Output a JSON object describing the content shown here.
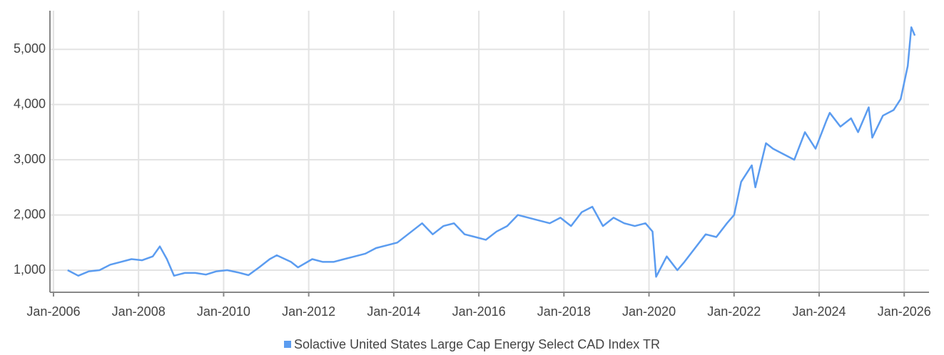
{
  "chart_data": {
    "type": "line",
    "x": [
      "2006-05",
      "2006-08",
      "2006-11",
      "2007-02",
      "2007-05",
      "2007-08",
      "2007-11",
      "2008-02",
      "2008-05",
      "2008-07",
      "2008-09",
      "2008-11",
      "2009-02",
      "2009-05",
      "2009-08",
      "2009-11",
      "2010-02",
      "2010-05",
      "2010-08",
      "2010-11",
      "2011-02",
      "2011-04",
      "2011-08",
      "2011-10",
      "2012-02",
      "2012-05",
      "2012-08",
      "2012-11",
      "2013-02",
      "2013-05",
      "2013-08",
      "2013-11",
      "2014-02",
      "2014-06",
      "2014-09",
      "2014-12",
      "2015-03",
      "2015-06",
      "2015-09",
      "2015-12",
      "2016-03",
      "2016-06",
      "2016-09",
      "2016-12",
      "2017-03",
      "2017-06",
      "2017-09",
      "2017-12",
      "2018-03",
      "2018-06",
      "2018-09",
      "2018-12",
      "2019-03",
      "2019-06",
      "2019-09",
      "2019-12",
      "2020-02",
      "2020-03",
      "2020-06",
      "2020-09",
      "2020-11",
      "2021-02",
      "2021-05",
      "2021-08",
      "2021-11",
      "2022-01",
      "2022-03",
      "2022-06",
      "2022-07",
      "2022-10",
      "2022-12",
      "2023-03",
      "2023-06",
      "2023-09",
      "2023-12",
      "2024-03",
      "2024-04",
      "2024-07",
      "2024-10",
      "2024-12",
      "2025-03",
      "2025-04",
      "2025-07",
      "2025-10",
      "2025-12",
      "2026-02",
      "2026-03",
      "2026-04"
    ],
    "series": [
      {
        "name": "Solactive United States Large Cap Energy Select CAD Index TR",
        "color": "#5b9cf0",
        "values": [
          1000,
          900,
          980,
          1000,
          1100,
          1150,
          1200,
          1180,
          1250,
          1430,
          1200,
          900,
          950,
          950,
          920,
          980,
          1000,
          960,
          910,
          1050,
          1200,
          1270,
          1150,
          1050,
          1200,
          1150,
          1150,
          1200,
          1250,
          1300,
          1400,
          1450,
          1500,
          1700,
          1850,
          1650,
          1800,
          1850,
          1650,
          1600,
          1550,
          1700,
          1800,
          2000,
          1950,
          1900,
          1850,
          1950,
          1800,
          2050,
          2150,
          1800,
          1950,
          1850,
          1800,
          1850,
          1700,
          880,
          1250,
          1000,
          1150,
          1400,
          1650,
          1600,
          1850,
          2000,
          2600,
          2900,
          2500,
          3300,
          3200,
          3100,
          3000,
          3500,
          3200,
          3700,
          3850,
          3600,
          3750,
          3500,
          3950,
          3400,
          3800,
          3900,
          4100,
          4700,
          5400,
          5250
        ]
      }
    ],
    "xlim": [
      "2005-12",
      "2026-08"
    ],
    "xticks": [
      {
        "value": "2006-01",
        "label": "Jan-2006"
      },
      {
        "value": "2008-01",
        "label": "Jan-2008"
      },
      {
        "value": "2010-01",
        "label": "Jan-2010"
      },
      {
        "value": "2012-01",
        "label": "Jan-2012"
      },
      {
        "value": "2014-01",
        "label": "Jan-2014"
      },
      {
        "value": "2016-01",
        "label": "Jan-2016"
      },
      {
        "value": "2018-01",
        "label": "Jan-2018"
      },
      {
        "value": "2020-01",
        "label": "Jan-2020"
      },
      {
        "value": "2022-01",
        "label": "Jan-2022"
      },
      {
        "value": "2024-01",
        "label": "Jan-2024"
      },
      {
        "value": "2026-01",
        "label": "Jan-2026"
      }
    ],
    "ylim": [
      600,
      5700
    ],
    "yticks": [
      {
        "value": 1000,
        "label": "1,000"
      },
      {
        "value": 2000,
        "label": "2,000"
      },
      {
        "value": 3000,
        "label": "3,000"
      },
      {
        "value": 4000,
        "label": "4,000"
      },
      {
        "value": 5000,
        "label": "5,000"
      }
    ],
    "grid": true,
    "legend": "bottom"
  }
}
